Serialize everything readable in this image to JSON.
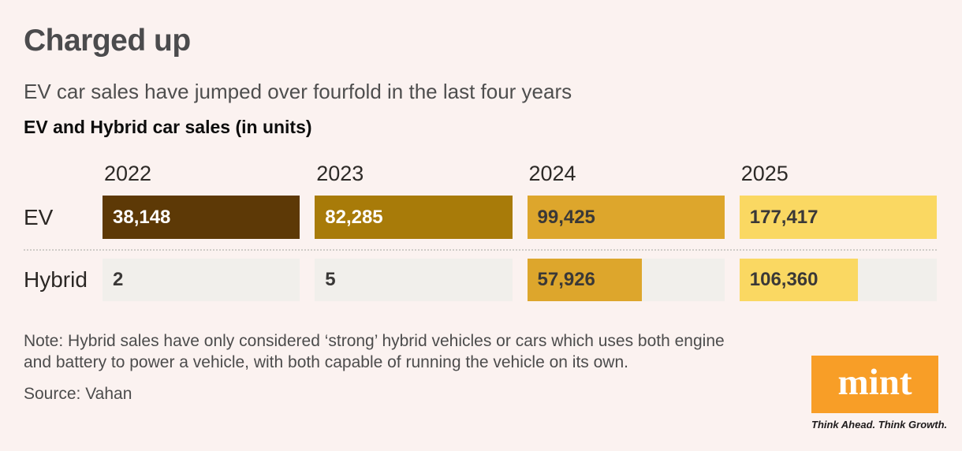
{
  "header": {
    "title": "Charged up",
    "subtitle": "EV car sales have jumped over fourfold in the last four years",
    "chart_heading": "EV and Hybrid car sales (in units)"
  },
  "chart_data": {
    "type": "bar",
    "orientation": "horizontal",
    "title": "EV and Hybrid car sales (in units)",
    "categories": [
      "2022",
      "2023",
      "2024",
      "2025"
    ],
    "series": [
      {
        "name": "EV",
        "values": [
          38148,
          82285,
          99425,
          177417
        ],
        "labels": [
          "38,148",
          "82,285",
          "99,425",
          "177,417"
        ]
      },
      {
        "name": "Hybrid",
        "values": [
          2,
          5,
          57926,
          106360
        ],
        "labels": [
          "2",
          "5",
          "57,926",
          "106,360"
        ]
      }
    ],
    "xlabel": "",
    "ylabel": "",
    "grid": false,
    "legend_position": "row-labels-left",
    "scaling_note": "Each year column is scaled independently: the EV bar fills the full column width and the Hybrid bar width is proportional to hybrid/EV for that year.",
    "bar_colors_by_year": [
      "#5d3906",
      "#a87b09",
      "#dda62c",
      "#fad862"
    ],
    "value_label_colors_by_year": [
      "#ffffff",
      "#ffffff",
      "#3a3837",
      "#3a3837"
    ],
    "value_label_dark": "#3a3837",
    "track_color": "#f1efeb"
  },
  "footer": {
    "note": "Note: Hybrid sales have only considered ‘strong’ hybrid vehicles or cars which uses both engine\nand battery to power a vehicle, with both capable of running the vehicle on its own.",
    "source": "Source: Vahan",
    "logo_text": "mint",
    "logo_tagline": "Think Ahead. Think Growth.",
    "logo_color": "#f89e27"
  },
  "colors": {
    "background": "#fbf2f0",
    "title_text": "#4b4b4d",
    "body_text": "#4c4c4c",
    "heading_text": "#0c0c0c",
    "axis_text": "#2d2a27",
    "separator": "#cfccc8"
  }
}
